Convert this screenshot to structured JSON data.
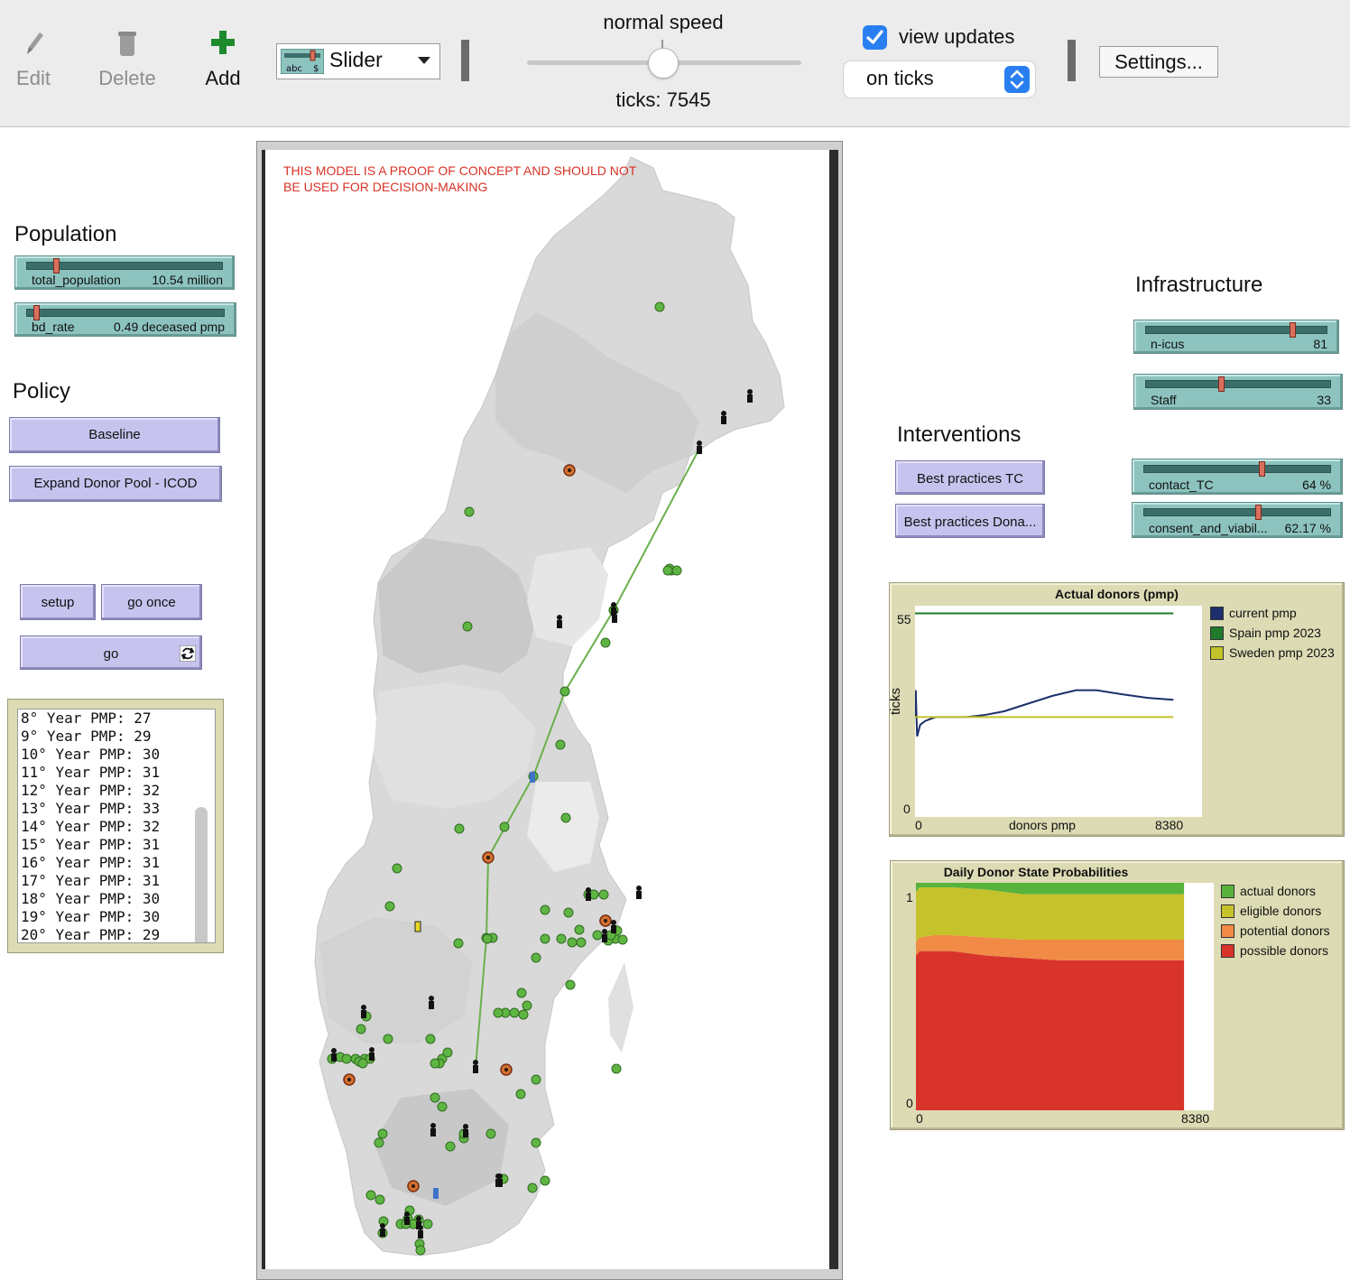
{
  "toolbar": {
    "edit": "Edit",
    "delete": "Delete",
    "add": "Add",
    "widget_type": "Slider",
    "speed_label": "normal speed",
    "speed_value": 0.5,
    "ticks_label": "ticks: 7545",
    "view_updates_label": "view updates",
    "view_updates_checked": true,
    "update_mode": "on ticks",
    "settings": "Settings..."
  },
  "population": {
    "heading": "Population",
    "sliders": [
      {
        "name": "total_population",
        "value": "10.54 million",
        "fraction": 0.12
      },
      {
        "name": "bd_rate",
        "value": "0.49 deceased pmp",
        "fraction": 0.0
      }
    ]
  },
  "policy": {
    "heading": "Policy",
    "buttons": [
      "Baseline",
      "Expand Donor Pool - ICOD"
    ]
  },
  "controls": {
    "setup": "setup",
    "go_once": "go once",
    "go": "go"
  },
  "output": {
    "lines": [
      "8° Year PMP: 27",
      "9° Year PMP: 29",
      "10° Year PMP: 30",
      "11° Year PMP: 31",
      "12° Year PMP: 32",
      "13° Year PMP: 33",
      "14° Year PMP: 32",
      "15° Year PMP: 31",
      "16° Year PMP: 31",
      "17° Year PMP: 31",
      "18° Year PMP: 30",
      "19° Year PMP: 30",
      "20° Year PMP: 29"
    ]
  },
  "map": {
    "warning": "THIS MODEL IS A PROOF OF CONCEPT AND SHOULD NOT BE USED FOR DECISION-MAKING"
  },
  "infrastructure": {
    "heading": "Infrastructure",
    "sliders": [
      {
        "name": "n-icus",
        "value": "81",
        "fraction": 0.78
      },
      {
        "name": "Staff",
        "value": "33",
        "fraction": 0.4
      }
    ]
  },
  "interventions": {
    "heading": "Interventions",
    "buttons": [
      "Best practices TC",
      "Best practices Dona..."
    ],
    "sliders": [
      {
        "name": "contact_TC",
        "value": "64 %",
        "fraction": 0.64
      },
      {
        "name": "consent_and_viabil...",
        "value": "62.17 %",
        "fraction": 0.62
      }
    ]
  },
  "plot1": {
    "title": "Actual donors (pmp)",
    "xlabel": "donors pmp",
    "ylabel": "ticks",
    "xmin": "0",
    "xmax": "8380",
    "ymin": "0",
    "ymax": "55",
    "legend": [
      {
        "name": "current pmp",
        "color": "#1c2f6b"
      },
      {
        "name": "Spain pmp 2023",
        "color": "#1f7a2b"
      },
      {
        "name": "Sweden pmp 2023",
        "color": "#c2c22a"
      }
    ]
  },
  "plot2": {
    "title": "Daily Donor State Probabilities",
    "xmin": "0",
    "xmax": "8380",
    "ymin": "0",
    "ymax": "1",
    "legend": [
      {
        "name": "actual donors",
        "color": "#58b33c"
      },
      {
        "name": "eligible donors",
        "color": "#c6c22c"
      },
      {
        "name": "potential donors",
        "color": "#f08a44"
      },
      {
        "name": "possible donors",
        "color": "#d8342b"
      }
    ]
  },
  "chart_data": [
    {
      "type": "line",
      "title": "Actual donors (pmp)",
      "xlabel": "donors pmp",
      "ylabel": "ticks",
      "xlim": [
        0,
        8380
      ],
      "ylim": [
        0,
        55
      ],
      "series": [
        {
          "name": "current pmp",
          "x": [
            0,
            20,
            60,
            150,
            300,
            600,
            1000,
            1500,
            2000,
            2600,
            3300,
            4000,
            4700,
            5300,
            6000,
            6800,
            7545
          ],
          "values": [
            26,
            33,
            21,
            24,
            25,
            26,
            26,
            26,
            26.5,
            27.5,
            29.5,
            31.5,
            33,
            33,
            32,
            31,
            30.5
          ]
        },
        {
          "name": "Spain pmp 2023",
          "x": [
            0,
            7545
          ],
          "values": [
            53,
            53
          ]
        },
        {
          "name": "Sweden pmp 2023",
          "x": [
            0,
            7545
          ],
          "values": [
            26,
            26
          ]
        }
      ]
    },
    {
      "type": "area",
      "title": "Daily Donor State Probabilities",
      "xlim": [
        0,
        8380
      ],
      "ylim": [
        0,
        1
      ],
      "x": [
        0,
        100,
        500,
        1000,
        2000,
        3000,
        4000,
        5000,
        6000,
        7000,
        7545
      ],
      "series": [
        {
          "name": "possible donors",
          "values": [
            0.68,
            0.7,
            0.7,
            0.7,
            0.68,
            0.67,
            0.66,
            0.66,
            0.66,
            0.66,
            0.66
          ]
        },
        {
          "name": "potential donors",
          "values": [
            0.06,
            0.06,
            0.07,
            0.07,
            0.08,
            0.08,
            0.09,
            0.09,
            0.09,
            0.09,
            0.09
          ]
        },
        {
          "name": "eligible donors",
          "values": [
            0.22,
            0.22,
            0.21,
            0.21,
            0.21,
            0.2,
            0.2,
            0.2,
            0.2,
            0.2,
            0.2
          ]
        },
        {
          "name": "actual donors",
          "values": [
            0.04,
            0.02,
            0.02,
            0.02,
            0.03,
            0.05,
            0.05,
            0.05,
            0.05,
            0.05,
            0.05
          ]
        }
      ]
    }
  ]
}
